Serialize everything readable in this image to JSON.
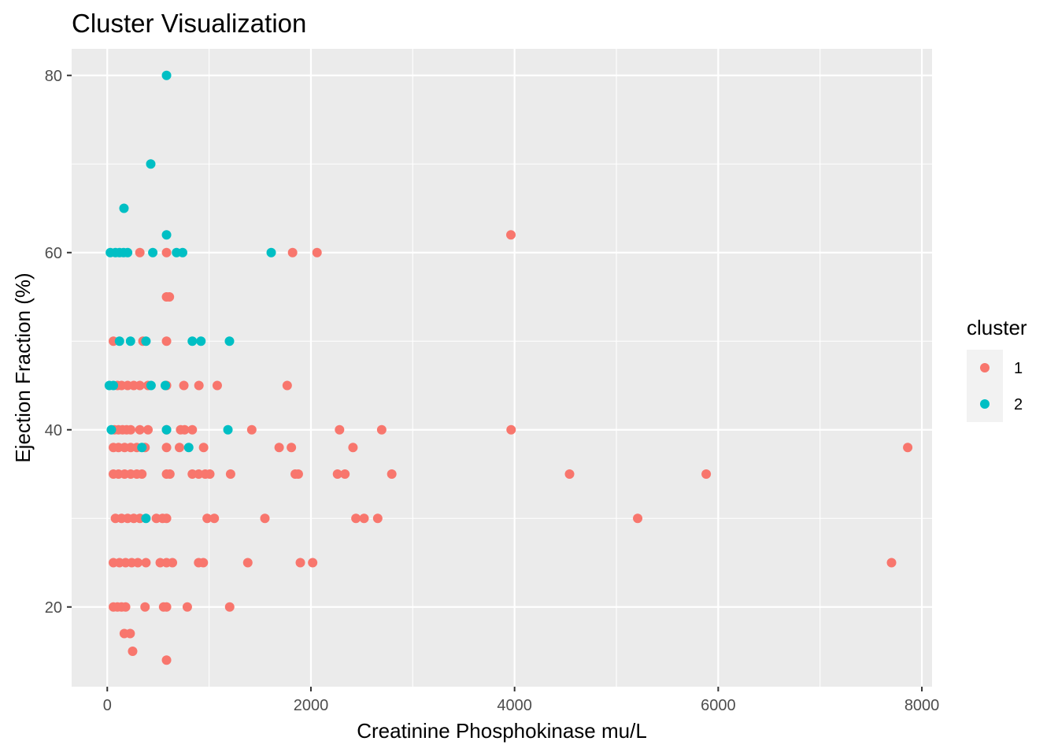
{
  "chart_data": {
    "type": "scatter",
    "title": "Cluster Visualization",
    "xlabel": "Creatinine Phosphokinase mu/L",
    "ylabel": "Ejection Fraction (%)",
    "xlim": [
      -350,
      8100
    ],
    "ylim": [
      11,
      83
    ],
    "x_ticks": [
      0,
      2000,
      4000,
      6000,
      8000
    ],
    "x_tick_labels": [
      "0",
      "2000",
      "4000",
      "6000",
      "8000"
    ],
    "y_ticks": [
      20,
      40,
      60,
      80
    ],
    "y_tick_labels": [
      "20",
      "40",
      "60",
      "80"
    ],
    "grid": true,
    "legend": {
      "title": "cluster",
      "position": "right"
    },
    "series": [
      {
        "name": "1",
        "color": "#F8766D",
        "points": [
          [
            3964,
            62
          ],
          [
            1820,
            60
          ],
          [
            2060,
            60
          ],
          [
            320,
            60
          ],
          [
            582,
            60
          ],
          [
            582,
            55
          ],
          [
            610,
            55
          ],
          [
            582,
            50
          ],
          [
            350,
            50
          ],
          [
            60,
            50
          ],
          [
            1767,
            45
          ],
          [
            1080,
            45
          ],
          [
            900,
            45
          ],
          [
            752,
            45
          ],
          [
            582,
            45
          ],
          [
            400,
            45
          ],
          [
            320,
            45
          ],
          [
            260,
            45
          ],
          [
            200,
            45
          ],
          [
            140,
            45
          ],
          [
            100,
            45
          ],
          [
            3966,
            40
          ],
          [
            2695,
            40
          ],
          [
            2281,
            40
          ],
          [
            1419,
            40
          ],
          [
            835,
            40
          ],
          [
            760,
            40
          ],
          [
            720,
            40
          ],
          [
            582,
            40
          ],
          [
            400,
            40
          ],
          [
            320,
            40
          ],
          [
            230,
            40
          ],
          [
            190,
            40
          ],
          [
            150,
            40
          ],
          [
            110,
            40
          ],
          [
            70,
            40
          ],
          [
            7861,
            38
          ],
          [
            2413,
            38
          ],
          [
            1808,
            38
          ],
          [
            1688,
            38
          ],
          [
            946,
            38
          ],
          [
            709,
            38
          ],
          [
            582,
            38
          ],
          [
            371,
            38
          ],
          [
            290,
            38
          ],
          [
            230,
            38
          ],
          [
            170,
            38
          ],
          [
            110,
            38
          ],
          [
            60,
            38
          ],
          [
            5882,
            35
          ],
          [
            4540,
            35
          ],
          [
            2794,
            35
          ],
          [
            2334,
            35
          ],
          [
            2261,
            35
          ],
          [
            1876,
            35
          ],
          [
            1846,
            35
          ],
          [
            1211,
            35
          ],
          [
            1007,
            35
          ],
          [
            962,
            35
          ],
          [
            898,
            35
          ],
          [
            835,
            35
          ],
          [
            615,
            35
          ],
          [
            582,
            35
          ],
          [
            340,
            35
          ],
          [
            290,
            35
          ],
          [
            230,
            35
          ],
          [
            170,
            35
          ],
          [
            110,
            35
          ],
          [
            60,
            35
          ],
          [
            5209,
            30
          ],
          [
            2656,
            30
          ],
          [
            2522,
            30
          ],
          [
            2442,
            30
          ],
          [
            1548,
            30
          ],
          [
            1051,
            30
          ],
          [
            981,
            30
          ],
          [
            582,
            30
          ],
          [
            543,
            30
          ],
          [
            482,
            30
          ],
          [
            320,
            30
          ],
          [
            260,
            30
          ],
          [
            200,
            30
          ],
          [
            140,
            30
          ],
          [
            80,
            30
          ],
          [
            7702,
            25
          ],
          [
            2017,
            25
          ],
          [
            1896,
            25
          ],
          [
            1380,
            25
          ],
          [
            943,
            25
          ],
          [
            897,
            25
          ],
          [
            640,
            25
          ],
          [
            582,
            25
          ],
          [
            520,
            25
          ],
          [
            380,
            25
          ],
          [
            300,
            25
          ],
          [
            240,
            25
          ],
          [
            180,
            25
          ],
          [
            120,
            25
          ],
          [
            60,
            25
          ],
          [
            1202,
            20
          ],
          [
            786,
            20
          ],
          [
            582,
            20
          ],
          [
            553,
            20
          ],
          [
            371,
            20
          ],
          [
            180,
            20
          ],
          [
            140,
            20
          ],
          [
            100,
            20
          ],
          [
            60,
            20
          ],
          [
            167,
            17
          ],
          [
            225,
            17
          ],
          [
            249,
            15
          ],
          [
            582,
            14
          ]
        ]
      },
      {
        "name": "2",
        "color": "#00BFC4",
        "points": [
          [
            582,
            80
          ],
          [
            427,
            70
          ],
          [
            164,
            65
          ],
          [
            582,
            62
          ],
          [
            30,
            60
          ],
          [
            80,
            60
          ],
          [
            120,
            60
          ],
          [
            160,
            60
          ],
          [
            200,
            60
          ],
          [
            447,
            60
          ],
          [
            680,
            60
          ],
          [
            740,
            60
          ],
          [
            1610,
            60
          ],
          [
            120,
            50
          ],
          [
            228,
            50
          ],
          [
            380,
            50
          ],
          [
            835,
            50
          ],
          [
            920,
            50
          ],
          [
            1200,
            50
          ],
          [
            20,
            45
          ],
          [
            60,
            45
          ],
          [
            430,
            45
          ],
          [
            570,
            45
          ],
          [
            40,
            40
          ],
          [
            582,
            40
          ],
          [
            1185,
            40
          ],
          [
            340,
            38
          ],
          [
            800,
            38
          ],
          [
            380,
            30
          ]
        ]
      }
    ]
  }
}
